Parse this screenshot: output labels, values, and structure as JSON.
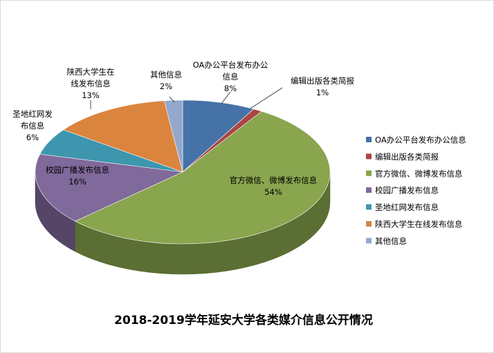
{
  "chart_data": {
    "type": "pie",
    "title": "2018-2019学年延安大学各类媒介信息公开情况",
    "legend_position": "right",
    "slices": [
      {
        "name": "OA办公平台发布办公信息",
        "label_lines": [
          "OA办公平台发布办公",
          "信息"
        ],
        "percent_label": "8%",
        "value": 8,
        "color": "#4572A7",
        "side": "#2E4D73"
      },
      {
        "name": "编辑出版各类简报",
        "label_lines": [
          "编辑出版各类简报"
        ],
        "percent_label": "1%",
        "value": 1,
        "color": "#AA4643",
        "side": "#74302E"
      },
      {
        "name": "官方微信、微博发布信息",
        "label_lines": [
          "官方微信、微博发布信息"
        ],
        "percent_label": "54%",
        "value": 54,
        "color": "#89A54E",
        "side": "#5B6E33"
      },
      {
        "name": "校园广播发布信息",
        "label_lines": [
          "校园广播发布信息"
        ],
        "percent_label": "16%",
        "value": 16,
        "color": "#80699B",
        "side": "#554567"
      },
      {
        "name": "圣地红网发布信息",
        "label_lines": [
          "圣地红网发",
          "布信息"
        ],
        "percent_label": "6%",
        "value": 6,
        "color": "#3D96AE",
        "side": "#286475"
      },
      {
        "name": "陕西大学生在线发布信息",
        "label_lines": [
          "陕西大学生在",
          "线发布信息"
        ],
        "percent_label": "13%",
        "value": 13,
        "color": "#DB843D",
        "side": "#955827"
      },
      {
        "name": "其他信息",
        "label_lines": [
          "其他信息"
        ],
        "percent_label": "2%",
        "value": 2,
        "color": "#92A8CD",
        "side": "#63728B"
      }
    ]
  }
}
